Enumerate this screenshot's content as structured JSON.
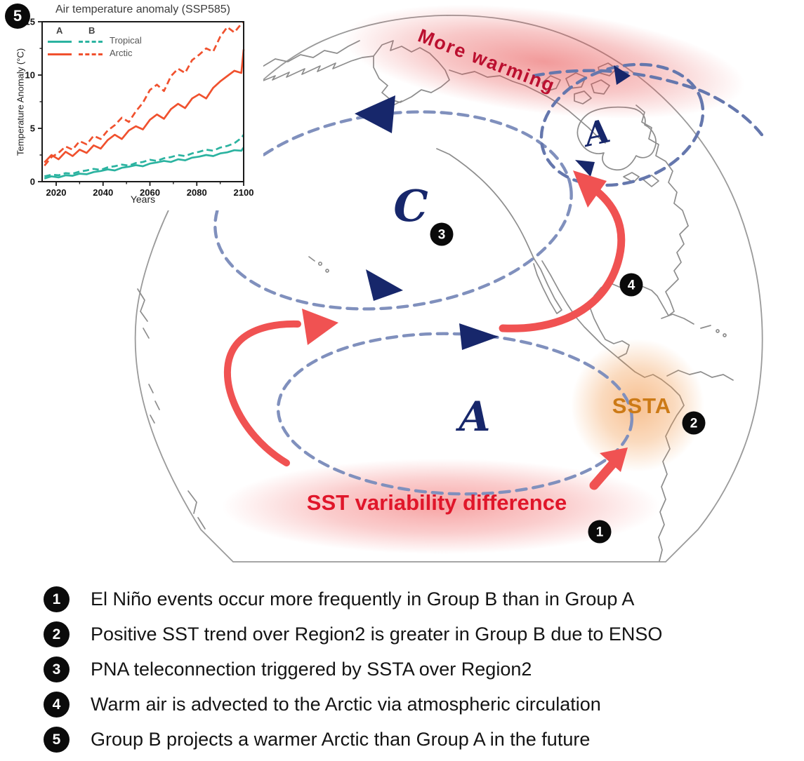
{
  "chart_data": {
    "type": "line",
    "title": "Air temperature anomaly (SSP585)",
    "xlabel": "Years",
    "ylabel": "Temperature Anomaly (°C)",
    "xlim": [
      2014,
      2100
    ],
    "ylim": [
      0,
      15
    ],
    "xticks": [
      2020,
      2040,
      2060,
      2080,
      2100
    ],
    "xminor": [
      2030,
      2050,
      2070,
      2090
    ],
    "yticks": [
      0,
      5,
      10,
      15
    ],
    "yminor": [
      2.5,
      7.5,
      12.5
    ],
    "grid": false,
    "legend": {
      "position": "top-left",
      "columns": [
        "A",
        "B"
      ],
      "column_styles": [
        "solid",
        "dashed"
      ],
      "rows": [
        "Tropical",
        "Arctic"
      ],
      "row_colors": [
        "#2bb3a0",
        "#f0512e"
      ]
    },
    "x": [
      2015,
      2018,
      2021,
      2024,
      2027,
      2030,
      2033,
      2036,
      2039,
      2042,
      2045,
      2048,
      2051,
      2054,
      2057,
      2060,
      2063,
      2066,
      2069,
      2072,
      2075,
      2078,
      2081,
      2084,
      2087,
      2090,
      2093,
      2096,
      2099,
      2100
    ],
    "series": [
      {
        "name": "Tropical A",
        "region": "Tropical",
        "group": "A",
        "style": "solid",
        "color": "#2bb3a0",
        "values": [
          0.3,
          0.5,
          0.4,
          0.6,
          0.55,
          0.75,
          0.7,
          0.9,
          1.0,
          1.15,
          1.05,
          1.3,
          1.4,
          1.55,
          1.45,
          1.7,
          1.8,
          1.95,
          1.85,
          2.1,
          2.0,
          2.25,
          2.35,
          2.5,
          2.4,
          2.65,
          2.75,
          2.95,
          2.9,
          3.2
        ]
      },
      {
        "name": "Tropical B",
        "region": "Tropical",
        "group": "B",
        "style": "dashed",
        "color": "#2bb3a0",
        "values": [
          0.5,
          0.65,
          0.6,
          0.8,
          0.75,
          0.95,
          1.05,
          1.2,
          1.1,
          1.35,
          1.45,
          1.6,
          1.5,
          1.75,
          1.85,
          2.05,
          1.95,
          2.2,
          2.3,
          2.5,
          2.4,
          2.65,
          2.8,
          3.0,
          2.9,
          3.2,
          3.35,
          3.6,
          4.1,
          4.4
        ]
      },
      {
        "name": "Arctic A",
        "region": "Arctic",
        "group": "A",
        "style": "solid",
        "color": "#f0512e",
        "values": [
          1.8,
          2.5,
          2.1,
          2.8,
          2.4,
          3.0,
          2.7,
          3.4,
          3.1,
          3.9,
          4.4,
          4.0,
          4.8,
          5.2,
          4.9,
          5.8,
          6.3,
          5.9,
          6.8,
          7.3,
          6.9,
          7.8,
          8.2,
          7.8,
          8.8,
          9.4,
          9.9,
          10.4,
          10.2,
          12.4
        ]
      },
      {
        "name": "Arctic B",
        "region": "Arctic",
        "group": "B",
        "style": "dashed",
        "color": "#f0512e",
        "values": [
          1.5,
          2.3,
          2.7,
          3.3,
          3.0,
          3.8,
          3.5,
          4.3,
          4.0,
          4.8,
          5.3,
          6.0,
          5.6,
          6.6,
          7.4,
          8.6,
          9.1,
          8.5,
          9.9,
          10.6,
          10.2,
          11.4,
          11.9,
          12.5,
          12.2,
          13.6,
          14.5,
          14.0,
          14.8,
          15.0
        ]
      }
    ]
  },
  "globe": {
    "labels": {
      "more_warming": "More warming",
      "ssta": "SSTA",
      "sst_variability": "SST variability difference",
      "gyre_c": "C",
      "gyre_a": "A",
      "arctic_a": "A"
    },
    "colors": {
      "navy": "#17276b",
      "dashed_loop": "#8090bd",
      "red_arrow": "#f05252",
      "more_warming_text": "#bb0f2f",
      "ssta_text": "#cc7a16",
      "sst_variability_text": "#e0162a",
      "coastline": "#8d8d8d",
      "badge": "#0a0a0a"
    }
  },
  "callouts": [
    {
      "num": "1",
      "text": "El Niño events occur more frequently in Group B than in Group A"
    },
    {
      "num": "2",
      "text": "Positive SST trend over Region2 is greater in Group B due to ENSO"
    },
    {
      "num": "3",
      "text": "PNA teleconnection triggered by SSTA over Region2"
    },
    {
      "num": "4",
      "text": "Warm air is advected to the Arctic via atmospheric circulation"
    },
    {
      "num": "5",
      "text": "Group B projects a warmer Arctic than Group A in the future"
    }
  ]
}
